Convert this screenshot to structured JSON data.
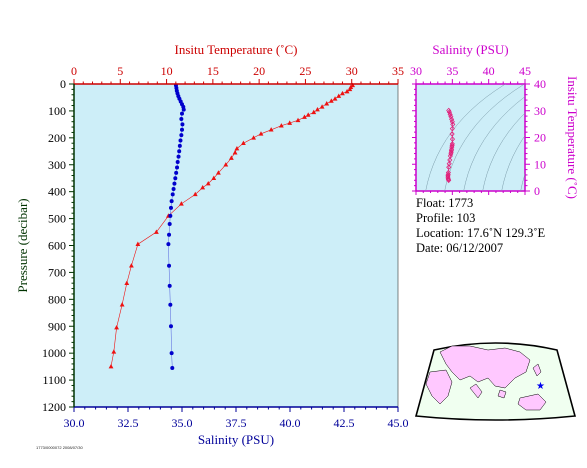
{
  "chart_data": [
    {
      "type": "line",
      "title": "",
      "x_top": {
        "label": "Insitu Temperature (˚C)",
        "ticks": [
          0,
          5,
          10,
          15,
          20,
          25,
          30,
          35
        ],
        "range": [
          0,
          35
        ],
        "color": "#cc0000"
      },
      "x_bottom": {
        "label": "Salinity (PSU)",
        "ticks": [
          "30.0",
          "32.5",
          "35.0",
          "37.5",
          "40.0",
          "42.5",
          "45.0"
        ],
        "range": [
          30,
          45
        ],
        "color": "#000099"
      },
      "y": {
        "label": "Pressure (decibar)",
        "ticks": [
          0,
          100,
          200,
          300,
          400,
          500,
          600,
          700,
          800,
          900,
          1000,
          1100,
          1200
        ],
        "range": [
          0,
          1200
        ],
        "inverted": true,
        "color": "#003300"
      },
      "background": "#cdeef8",
      "series": [
        {
          "color": "#ee1111",
          "marker": "triangle",
          "axis": "temperature",
          "points": [
            [
              30.1,
              5
            ],
            [
              29.9,
              12
            ],
            [
              29.8,
              20
            ],
            [
              29.5,
              28
            ],
            [
              29.0,
              35
            ],
            [
              28.6,
              45
            ],
            [
              28.2,
              55
            ],
            [
              27.8,
              63
            ],
            [
              27.3,
              73
            ],
            [
              26.8,
              85
            ],
            [
              26.3,
              95
            ],
            [
              25.9,
              105
            ],
            [
              25.3,
              115
            ],
            [
              24.9,
              123
            ],
            [
              24.2,
              135
            ],
            [
              23.3,
              145
            ],
            [
              22.4,
              155
            ],
            [
              21.3,
              170
            ],
            [
              20.2,
              185
            ],
            [
              19.4,
              200
            ],
            [
              18.3,
              220
            ],
            [
              17.6,
              240
            ],
            [
              17.4,
              255
            ],
            [
              17.0,
              275
            ],
            [
              16.4,
              300
            ],
            [
              15.6,
              330
            ],
            [
              15.1,
              350
            ],
            [
              14.5,
              370
            ],
            [
              13.9,
              385
            ],
            [
              13.1,
              410
            ],
            [
              11.6,
              445
            ],
            [
              10.2,
              490
            ],
            [
              8.9,
              550
            ],
            [
              6.9,
              595
            ],
            [
              6.2,
              675
            ],
            [
              5.7,
              740
            ],
            [
              5.2,
              820
            ],
            [
              4.6,
              905
            ],
            [
              4.3,
              995
            ],
            [
              4.0,
              1050
            ]
          ]
        },
        {
          "color": "#0000cc",
          "marker": "dot",
          "axis": "salinity",
          "points": [
            [
              34.72,
              5
            ],
            [
              34.74,
              15
            ],
            [
              34.76,
              25
            ],
            [
              34.79,
              35
            ],
            [
              34.83,
              45
            ],
            [
              34.88,
              55
            ],
            [
              34.94,
              65
            ],
            [
              35.0,
              75
            ],
            [
              35.06,
              85
            ],
            [
              35.08,
              95
            ],
            [
              35.0,
              110
            ],
            [
              34.97,
              130
            ],
            [
              35.02,
              150
            ],
            [
              35.0,
              170
            ],
            [
              34.97,
              190
            ],
            [
              34.93,
              210
            ],
            [
              34.9,
              230
            ],
            [
              34.87,
              250
            ],
            [
              34.84,
              270
            ],
            [
              34.8,
              290
            ],
            [
              34.77,
              310
            ],
            [
              34.73,
              330
            ],
            [
              34.69,
              350
            ],
            [
              34.65,
              370
            ],
            [
              34.61,
              390
            ],
            [
              34.57,
              410
            ],
            [
              34.52,
              435
            ],
            [
              34.49,
              460
            ],
            [
              34.46,
              490
            ],
            [
              34.43,
              520
            ],
            [
              34.4,
              560
            ],
            [
              34.37,
              595
            ],
            [
              34.4,
              675
            ],
            [
              34.43,
              750
            ],
            [
              34.46,
              820
            ],
            [
              34.49,
              900
            ],
            [
              34.52,
              1000
            ],
            [
              34.55,
              1055
            ]
          ]
        }
      ]
    },
    {
      "type": "scatter",
      "title": "",
      "x": {
        "label": "Salinity (PSU)",
        "ticks": [
          30,
          35,
          40,
          45
        ],
        "range": [
          30,
          45
        ],
        "color": "#cc00cc"
      },
      "y": {
        "label": "Insitu Temperature (˚C)",
        "ticks": [
          0,
          10,
          20,
          30,
          40
        ],
        "range": [
          0,
          40
        ],
        "color": "#cc00cc"
      },
      "background": "#cdeef8",
      "series": [
        {
          "color": "#e0207a",
          "marker": "diamond",
          "points": [
            [
              34.5,
              30.1
            ],
            [
              34.6,
              29.5
            ],
            [
              34.7,
              28.6
            ],
            [
              34.8,
              27.8
            ],
            [
              34.9,
              26.8
            ],
            [
              35.0,
              25.9
            ],
            [
              35.06,
              24.9
            ],
            [
              35.0,
              23.3
            ],
            [
              34.97,
              21.3
            ],
            [
              35.02,
              19.4
            ],
            [
              35.0,
              17.6
            ],
            [
              34.97,
              17.0
            ],
            [
              34.93,
              16.4
            ],
            [
              34.9,
              15.6
            ],
            [
              34.87,
              15.1
            ],
            [
              34.84,
              14.5
            ],
            [
              34.8,
              13.9
            ],
            [
              34.73,
              13.1
            ],
            [
              34.65,
              11.6
            ],
            [
              34.57,
              10.2
            ],
            [
              34.5,
              8.9
            ],
            [
              34.46,
              6.9
            ],
            [
              34.43,
              6.2
            ],
            [
              34.4,
              5.7
            ],
            [
              34.4,
              5.2
            ],
            [
              34.43,
              4.6
            ],
            [
              34.46,
              4.3
            ],
            [
              34.5,
              4.0
            ]
          ]
        }
      ]
    }
  ],
  "info": {
    "float": "Float:  1773",
    "profile": "Profile:  103",
    "location": "Location:  17.6˚N  129.3˚E",
    "date": "Date:  06/12/2007"
  },
  "map": {
    "marker": "★",
    "marker_color": "#0000ee",
    "land_color": "#ffc8ff",
    "ocean_color": "#f0fff0"
  },
  "stamp": "1773/0000072 2008/07/30"
}
